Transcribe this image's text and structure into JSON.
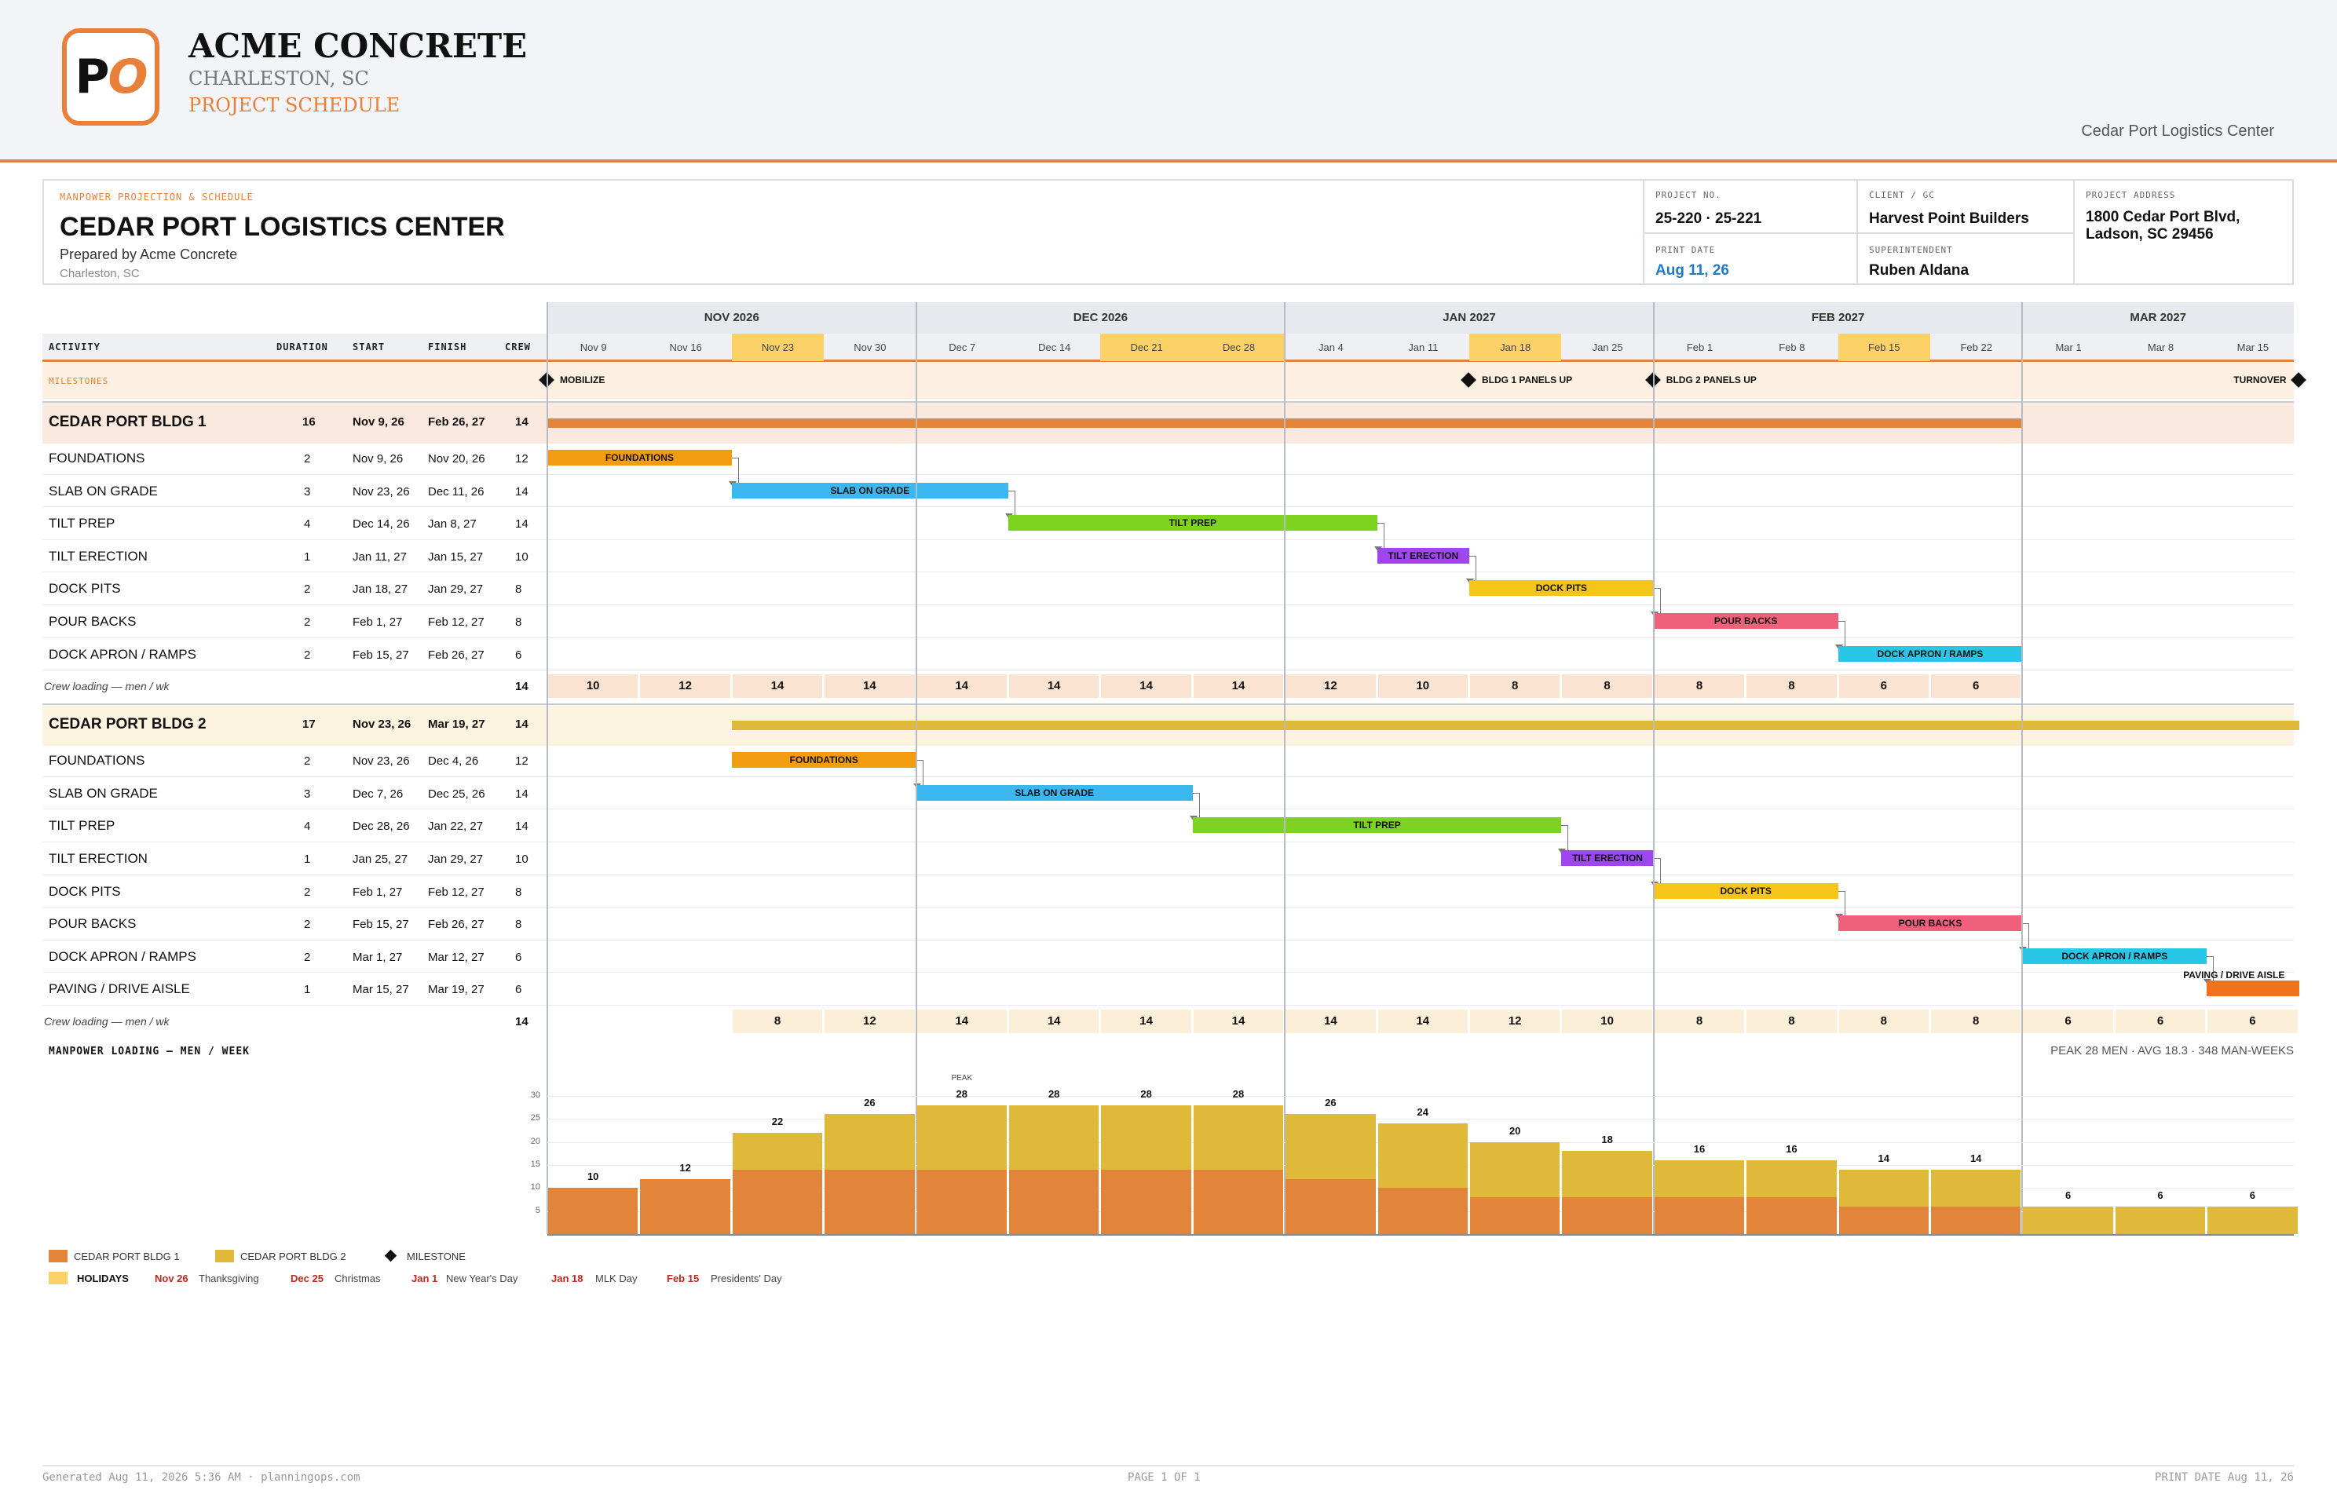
{
  "company": {
    "logo_p": "P",
    "logo_o": "O",
    "name": "ACME CONCRETE",
    "city": "CHARLESTON, SC",
    "doc_type": "PROJECT SCHEDULE",
    "header_project": "Cedar Port Logistics Center"
  },
  "info": {
    "kicker": "MANPOWER PROJECTION & SCHEDULE",
    "title": "CEDAR PORT LOGISTICS CENTER",
    "prepared": "Prepared by Acme Concrete",
    "location": "Charleston, SC",
    "project_no_label": "PROJECT NO.",
    "project_no": "25-220 · 25-221",
    "print_date_label": "PRINT DATE",
    "print_date": "Aug 11, 26",
    "client_label": "CLIENT / GC",
    "client": "Harvest Point Builders",
    "super_label": "SUPERINTENDENT",
    "super": "Ruben Aldana",
    "address_label": "PROJECT ADDRESS",
    "address1": "1800 Cedar Port Blvd,",
    "address2": "Ladson, SC 29456"
  },
  "columns": {
    "activity": "ACTIVITY",
    "duration": "DURATION",
    "start": "START",
    "finish": "FINISH",
    "crew": "CREW",
    "milestones": "MILESTONES"
  },
  "months": [
    "NOV 2026",
    "DEC 2026",
    "JAN 2027",
    "FEB 2027",
    "MAR 2027"
  ],
  "weeks": [
    "Nov 9",
    "Nov 16",
    "Nov 23",
    "Nov 30",
    "Dec 7",
    "Dec 14",
    "Dec 21",
    "Dec 28",
    "Jan 4",
    "Jan 11",
    "Jan 18",
    "Jan 25",
    "Feb 1",
    "Feb 8",
    "Feb 15",
    "Feb 22",
    "Mar 1",
    "Mar 8",
    "Mar 15"
  ],
  "holiday_weeks": [
    2,
    6,
    7,
    10,
    14
  ],
  "milestones": [
    {
      "label": "MOBILIZE",
      "week": 0
    },
    {
      "label": "BLDG 1 PANELS UP",
      "week": 10
    },
    {
      "label": "BLDG 2 PANELS UP",
      "week": 12
    },
    {
      "label": "TURNOVER",
      "week": 19
    }
  ],
  "groups": [
    {
      "name": "CEDAR PORT BLDG 1",
      "duration": "16",
      "start": "Nov 9, 26",
      "finish": "Feb 26, 27",
      "crew": "14",
      "summary_start": 0,
      "summary_end": 16,
      "summary_color": "#e2843a",
      "band": "#fbe9df",
      "tasks": [
        {
          "name": "FOUNDATIONS",
          "duration": "2",
          "start": "Nov 9, 26",
          "finish": "Nov 20, 26",
          "crew": "12",
          "s": 0,
          "e": 2,
          "color": "#f39c12",
          "label": "FOUNDATIONS"
        },
        {
          "name": "SLAB ON GRADE",
          "duration": "3",
          "start": "Nov 23, 26",
          "finish": "Dec 11, 26",
          "crew": "14",
          "s": 2,
          "e": 5,
          "color": "#3bb7f0",
          "label": "SLAB ON GRADE"
        },
        {
          "name": "TILT PREP",
          "duration": "4",
          "start": "Dec 14, 26",
          "finish": "Jan 8, 27",
          "crew": "14",
          "s": 5,
          "e": 9,
          "color": "#7ed321",
          "label": "TILT PREP"
        },
        {
          "name": "TILT ERECTION",
          "duration": "1",
          "start": "Jan 11, 27",
          "finish": "Jan 15, 27",
          "crew": "10",
          "s": 9,
          "e": 10,
          "color": "#a046f0",
          "label": "TILT ERECTION"
        },
        {
          "name": "DOCK PITS",
          "duration": "2",
          "start": "Jan 18, 27",
          "finish": "Jan 29, 27",
          "crew": "8",
          "s": 10,
          "e": 12,
          "color": "#f7c51a",
          "label": "DOCK PITS"
        },
        {
          "name": "POUR BACKS",
          "duration": "2",
          "start": "Feb 1, 27",
          "finish": "Feb 12, 27",
          "crew": "8",
          "s": 12,
          "e": 14,
          "color": "#f0607a",
          "label": "POUR BACKS"
        },
        {
          "name": "DOCK APRON / RAMPS",
          "duration": "2",
          "start": "Feb 15, 27",
          "finish": "Feb 26, 27",
          "crew": "6",
          "s": 14,
          "e": 16,
          "color": "#29c6e8",
          "label": "DOCK APRON / RAMPS"
        }
      ],
      "load_label": "Crew loading — men / wk",
      "load_peak": "14",
      "load_start": 0,
      "load": [
        "10",
        "12",
        "14",
        "14",
        "14",
        "14",
        "14",
        "14",
        "12",
        "10",
        "8",
        "8",
        "8",
        "8",
        "6",
        "6"
      ],
      "load_bg": "#fbe3d2"
    },
    {
      "name": "CEDAR PORT BLDG 2",
      "duration": "17",
      "start": "Nov 23, 26",
      "finish": "Mar 19, 27",
      "crew": "14",
      "summary_start": 2,
      "summary_end": 19,
      "summary_color": "#e0b83a",
      "band": "#fcf4e1",
      "tasks": [
        {
          "name": "FOUNDATIONS",
          "duration": "2",
          "start": "Nov 23, 26",
          "finish": "Dec 4, 26",
          "crew": "12",
          "s": 2,
          "e": 4,
          "color": "#f39c12",
          "label": "FOUNDATIONS"
        },
        {
          "name": "SLAB ON GRADE",
          "duration": "3",
          "start": "Dec 7, 26",
          "finish": "Dec 25, 26",
          "crew": "14",
          "s": 4,
          "e": 7,
          "color": "#3bb7f0",
          "label": "SLAB ON GRADE"
        },
        {
          "name": "TILT PREP",
          "duration": "4",
          "start": "Dec 28, 26",
          "finish": "Jan 22, 27",
          "crew": "14",
          "s": 7,
          "e": 11,
          "color": "#7ed321",
          "label": "TILT PREP"
        },
        {
          "name": "TILT ERECTION",
          "duration": "1",
          "start": "Jan 25, 27",
          "finish": "Jan 29, 27",
          "crew": "10",
          "s": 11,
          "e": 12,
          "color": "#a046f0",
          "label": "TILT ERECTION"
        },
        {
          "name": "DOCK PITS",
          "duration": "2",
          "start": "Feb 1, 27",
          "finish": "Feb 12, 27",
          "crew": "8",
          "s": 12,
          "e": 14,
          "color": "#f7c51a",
          "label": "DOCK PITS"
        },
        {
          "name": "POUR BACKS",
          "duration": "2",
          "start": "Feb 15, 27",
          "finish": "Feb 26, 27",
          "crew": "8",
          "s": 14,
          "e": 16,
          "color": "#f0607a",
          "label": "POUR BACKS"
        },
        {
          "name": "DOCK APRON / RAMPS",
          "duration": "2",
          "start": "Mar 1, 27",
          "finish": "Mar 12, 27",
          "crew": "6",
          "s": 16,
          "e": 18,
          "color": "#29c6e8",
          "label": "DOCK APRON / RAMPS"
        },
        {
          "name": "PAVING / DRIVE AISLE",
          "duration": "1",
          "start": "Mar 15, 27",
          "finish": "Mar 19, 27",
          "crew": "6",
          "s": 18,
          "e": 19,
          "color": "#f2711c",
          "label": "PAVING / DRIVE AISLE",
          "label_above": true
        }
      ],
      "load_label": "Crew loading — men / wk",
      "load_peak": "14",
      "load_start": 2,
      "load": [
        "8",
        "12",
        "14",
        "14",
        "14",
        "14",
        "14",
        "14",
        "12",
        "10",
        "8",
        "8",
        "8",
        "8",
        "6",
        "6",
        "6"
      ],
      "load_bg": "#fbf0d7"
    }
  ],
  "manpower": {
    "title": "MANPOWER LOADING — MEN / WEEK",
    "summary": "PEAK 28 MEN · AVG 18.3 · 348 MAN-WEEKS",
    "peak_label": "PEAK",
    "yticks": [
      "5",
      "10",
      "15",
      "20",
      "25",
      "30"
    ],
    "ymax": 30,
    "bldg1": [
      10,
      12,
      14,
      14,
      14,
      14,
      14,
      14,
      12,
      10,
      8,
      8,
      8,
      8,
      6,
      6,
      0,
      0,
      0
    ],
    "bldg2": [
      0,
      0,
      8,
      12,
      14,
      14,
      14,
      14,
      14,
      14,
      12,
      10,
      8,
      8,
      8,
      8,
      6,
      6,
      6
    ],
    "totals": [
      "10",
      "12",
      "22",
      "26",
      "28",
      "28",
      "28",
      "28",
      "26",
      "24",
      "20",
      "18",
      "16",
      "16",
      "14",
      "14",
      "6",
      "6",
      "6"
    ],
    "color1": "#e2843a",
    "color2": "#e0b83a"
  },
  "legend": {
    "bldg1": "CEDAR PORT BLDG 1",
    "bldg2": "CEDAR PORT BLDG 2",
    "milestone": "MILESTONE",
    "holidays": "HOLIDAYS",
    "holiday_list": [
      {
        "date": "Nov 26",
        "name": "Thanksgiving"
      },
      {
        "date": "Dec 25",
        "name": "Christmas"
      },
      {
        "date": "Jan 1",
        "name": "New Year's Day"
      },
      {
        "date": "Jan 18",
        "name": "MLK Day"
      },
      {
        "date": "Feb 15",
        "name": "Presidents' Day"
      }
    ]
  },
  "footer": {
    "left": "Generated Aug 11, 2026 5:36 AM · planningops.com",
    "center": "PAGE 1 OF 1",
    "right": "PRINT DATE Aug 11, 26"
  }
}
